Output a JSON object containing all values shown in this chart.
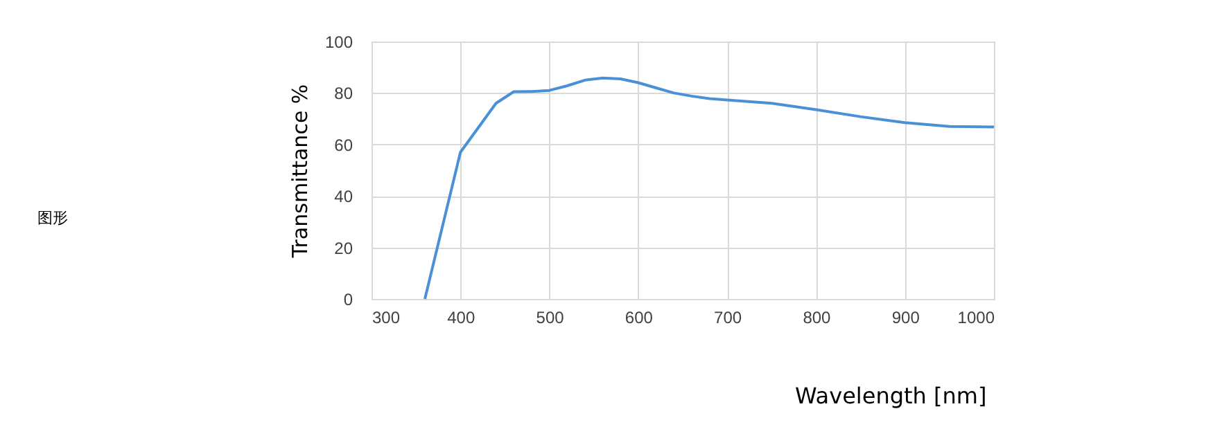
{
  "chart_data": {
    "type": "line",
    "xlabel": "Wavelength [nm]",
    "ylabel": "Transmittance %",
    "annotations": [
      "图形"
    ],
    "x": [
      360,
      400,
      440,
      460,
      480,
      500,
      520,
      540,
      560,
      580,
      600,
      620,
      640,
      660,
      680,
      700,
      750,
      800,
      850,
      900,
      950,
      1000
    ],
    "series": [
      {
        "color": "#4a90d6",
        "values": [
          0,
          57,
          76,
          80.5,
          80.6,
          81,
          82.8,
          85,
          85.8,
          85.5,
          84,
          82,
          80,
          78.8,
          77.8,
          77.3,
          76,
          73.5,
          70.8,
          68.5,
          67,
          66.8
        ]
      }
    ],
    "xlim": [
      300,
      1000
    ],
    "xticks": [
      300,
      400,
      500,
      600,
      700,
      800,
      900,
      1000
    ],
    "ylim": [
      0,
      100
    ],
    "yticks": [
      0,
      20,
      40,
      60,
      80,
      100
    ],
    "grid": true,
    "marker": "none",
    "line_style": "solid"
  }
}
